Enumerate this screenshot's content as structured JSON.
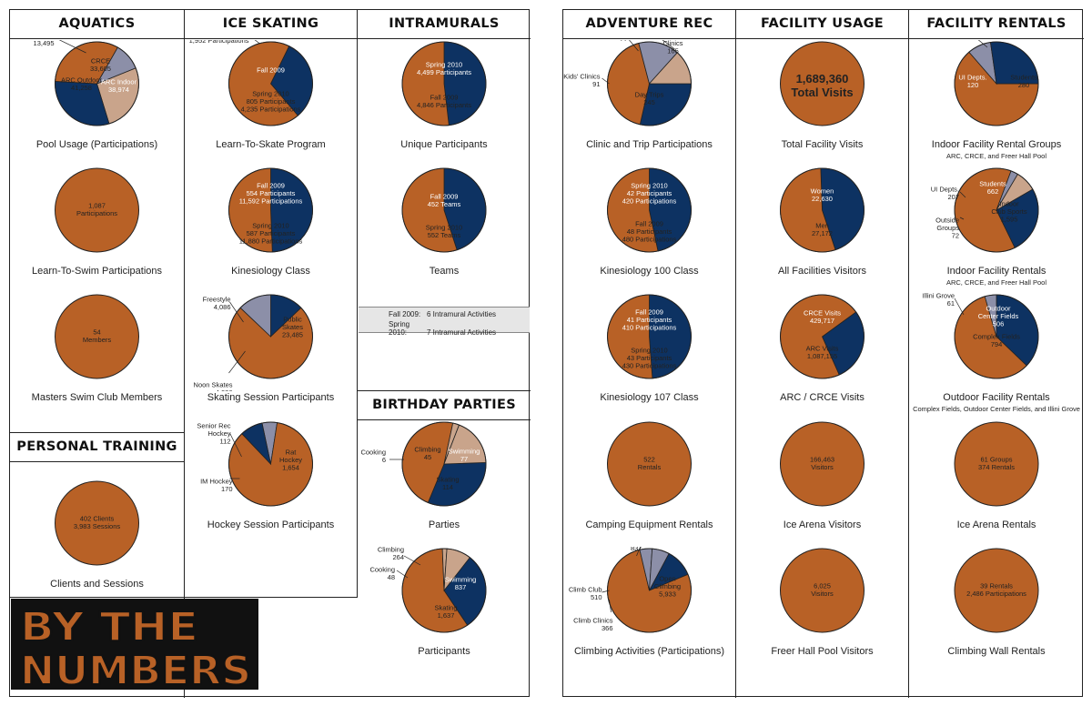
{
  "colors": {
    "navy": "#0d3262",
    "orange": "#b86126",
    "tan": "#c9a48b",
    "gray": "#8c8fa8",
    "border": "#222222",
    "logo_fill": "#b86126",
    "logo_outline": "#111111"
  },
  "logo": {
    "line1": "BY THE",
    "line2": "NUMBERS"
  },
  "sections": {
    "aquatics": "AQUATICS",
    "personal_training": "PERSONAL TRAINING",
    "ice_skating": "ICE SKATING",
    "intramurals": "INTRAMURALS",
    "birthday_parties": "BIRTHDAY PARTIES",
    "adventure_rec": "ADVENTURE REC",
    "facility_usage": "FACILITY USAGE",
    "facility_rentals": "FACILITY RENTALS"
  },
  "intramural_activities": {
    "fall_label": "Fall 2009:",
    "fall_value": "6 Intramural Activities",
    "spring_label": "Spring 2010:",
    "spring_value": "7 Intramural Activities"
  },
  "chart_data": [
    {
      "id": "pool",
      "type": "pie",
      "title": "Pool Usage (Participations)",
      "slices": [
        {
          "label": "CRCE",
          "value": 33605
        },
        {
          "label": "ARC Indoor",
          "value": 38974
        },
        {
          "label": "ARC Outdoor",
          "value": 41258
        },
        {
          "label": "Freer Hall Pool",
          "value": 13495
        }
      ],
      "labels": [
        [
          "CRCE",
          "33,605"
        ],
        [
          "ARC Indoor",
          "38,974"
        ],
        [
          "ARC Outdoor",
          "41,258"
        ],
        [
          "Freer Hall Pool",
          "13,495"
        ]
      ]
    },
    {
      "id": "learn_to_swim",
      "type": "pie",
      "title": "Learn-To-Swim Participations",
      "slices": [
        {
          "label": "Participations",
          "value": 1087
        }
      ],
      "labels": [
        [
          "1,087",
          "Participations"
        ]
      ]
    },
    {
      "id": "masters",
      "type": "pie",
      "title": "Masters Swim Club Members",
      "slices": [
        {
          "label": "Members",
          "value": 54
        }
      ],
      "labels": [
        [
          "54",
          "Members"
        ]
      ]
    },
    {
      "id": "personal_training",
      "type": "pie",
      "title": "Clients and Sessions",
      "slices": [
        {
          "label": "Clients",
          "value": 402
        }
      ],
      "labels": [
        [
          "402 Clients",
          "3,983 Sessions"
        ]
      ]
    },
    {
      "id": "learn_to_skate",
      "type": "pie",
      "title": "Learn-To-Skate Program",
      "slices": [
        {
          "label": "Fall 2009",
          "value": 1952
        },
        {
          "label": "Spring 2010",
          "value": 4235
        }
      ],
      "labels": [
        [
          "275 Participants",
          "1,952 Participations"
        ],
        [
          "Fall 2009"
        ],
        [
          "Spring 2010",
          "805 Participants",
          "4,235 Participations"
        ]
      ]
    },
    {
      "id": "kinesiology_class",
      "type": "pie",
      "title": "Kinesiology Class",
      "slices": [
        {
          "label": "Fall 2009",
          "value": 11592
        },
        {
          "label": "Spring 2010",
          "value": 11880
        }
      ],
      "labels": [
        [
          "Fall 2009",
          "554 Participants",
          "11,592 Participations"
        ],
        [
          "Spring 2010",
          "587 Participants",
          "11,880 Participations"
        ]
      ]
    },
    {
      "id": "skating_sessions",
      "type": "pie",
      "title": "Skating Session Participants",
      "slices": [
        {
          "label": "Freestyle",
          "value": 4086
        },
        {
          "label": "Public Skates",
          "value": 23485
        },
        {
          "label": "Noon Skates",
          "value": 4086
        }
      ],
      "labels": [
        [
          "Freestyle",
          "4,086"
        ],
        [
          "Public",
          "Skates",
          "23,485"
        ],
        [
          "Noon Skates",
          "4,086"
        ]
      ]
    },
    {
      "id": "hockey",
      "type": "pie",
      "title": "Hockey Session Participants",
      "slices": [
        {
          "label": "Senior Rec Hockey",
          "value": 112
        },
        {
          "label": "Rat Hockey",
          "value": 1654
        },
        {
          "label": "IM Hockey",
          "value": 170
        }
      ],
      "labels": [
        [
          "Senior Rec",
          "Hockey",
          "112"
        ],
        [
          "Rat",
          "Hockey",
          "1,654"
        ],
        [
          "IM Hockey",
          "170"
        ]
      ]
    },
    {
      "id": "unique_participants",
      "type": "pie",
      "title": "Unique Participants",
      "slices": [
        {
          "label": "Spring 2010",
          "value": 4499
        },
        {
          "label": "Fall 2009",
          "value": 4846
        }
      ],
      "labels": [
        [
          "Spring 2010",
          "4,499 Participants"
        ],
        [
          "Fall 2009",
          "4,846 Participants"
        ]
      ]
    },
    {
      "id": "teams",
      "type": "pie",
      "title": "Teams",
      "slices": [
        {
          "label": "Fall 2009",
          "value": 452
        },
        {
          "label": "Spring 2010",
          "value": 552
        }
      ],
      "labels": [
        [
          "Fall 2009",
          "452 Teams"
        ],
        [
          "Spring 2010",
          "552 Teams"
        ]
      ]
    },
    {
      "id": "parties",
      "type": "pie",
      "title": "Parties",
      "slices": [
        {
          "label": "Swimming",
          "value": 77
        },
        {
          "label": "Skating",
          "value": 114
        },
        {
          "label": "Cooking",
          "value": 6
        },
        {
          "label": "Climbing",
          "value": 45
        }
      ],
      "labels": [
        [
          "Swimming",
          "77"
        ],
        [
          "Skating",
          "114"
        ],
        [
          "Cooking",
          "6"
        ],
        [
          "Climbing",
          "45"
        ]
      ]
    },
    {
      "id": "party_participants",
      "type": "pie",
      "title": "Participants",
      "slices": [
        {
          "label": "Swimming",
          "value": 837
        },
        {
          "label": "Skating",
          "value": 1637
        },
        {
          "label": "Cooking",
          "value": 48
        },
        {
          "label": "Climbing",
          "value": 264
        }
      ],
      "labels": [
        [
          "Swimming",
          "837"
        ],
        [
          "Skating",
          "1,637"
        ],
        [
          "Cooking",
          "48"
        ],
        [
          "Climbing",
          "264"
        ]
      ]
    },
    {
      "id": "clinics_trips",
      "type": "pie",
      "title": "Clinic and Trip Participations",
      "slices": [
        {
          "label": "Community Clinics",
          "value": 165
        },
        {
          "label": "Day Trips",
          "value": 245
        },
        {
          "label": "Kids' Clinics",
          "value": 91
        },
        {
          "label": "Clinics",
          "value": 77
        }
      ],
      "labels": [
        [
          "Community",
          "Clinics",
          "165"
        ],
        [
          "Day Trips",
          "245"
        ],
        [
          "Kids' Clinics",
          "91"
        ],
        [
          "Clinics",
          "77"
        ]
      ]
    },
    {
      "id": "kin100",
      "type": "pie",
      "title": "Kinesiology 100 Class",
      "slices": [
        {
          "label": "Spring 2010",
          "value": 420
        },
        {
          "label": "Fall 2009",
          "value": 480
        }
      ],
      "labels": [
        [
          "Spring 2010",
          "42 Participants",
          "420 Participations"
        ],
        [
          "Fall 2009",
          "48 Participants",
          "480 Participations"
        ]
      ]
    },
    {
      "id": "kin107",
      "type": "pie",
      "title": "Kinesiology 107 Class",
      "slices": [
        {
          "label": "Fall 2009",
          "value": 410
        },
        {
          "label": "Spring 2010",
          "value": 430
        }
      ],
      "labels": [
        [
          "Fall 2009",
          "41 Participants",
          "410 Participations"
        ],
        [
          "Spring 2010",
          "43 Participants",
          "430 Participations"
        ]
      ]
    },
    {
      "id": "camping",
      "type": "pie",
      "title": "Camping Equipment Rentals",
      "slices": [
        {
          "label": "Rentals",
          "value": 522
        }
      ],
      "labels": [
        [
          "522",
          "Rentals"
        ]
      ]
    },
    {
      "id": "climbing_activities",
      "type": "pie",
      "title": "Climbing Activities (Participations)",
      "slices": [
        {
          "label": "Free Events (11)",
          "value": 837
        },
        {
          "label": "Open Climbing",
          "value": 5933
        },
        {
          "label": "Climb Clinics",
          "value": 366
        },
        {
          "label": "Climb Club",
          "value": 510
        }
      ],
      "labels": [
        [
          "Free Events (11)",
          "837"
        ],
        [
          "Open",
          "Climbing",
          "5,933"
        ],
        [
          "Climb Clinics",
          "366"
        ],
        [
          "Climb Club",
          "510"
        ]
      ]
    },
    {
      "id": "total_visits",
      "type": "pie",
      "title": "Total Facility Visits",
      "slices": [
        {
          "label": "Total Visits",
          "value": 1689360
        }
      ],
      "labels": [
        [
          "1,689,360",
          "Total Visits"
        ]
      ]
    },
    {
      "id": "all_visitors",
      "type": "pie",
      "title": "All Facilities Visitors",
      "slices": [
        {
          "label": "Women",
          "value": 22630
        },
        {
          "label": "Men",
          "value": 27172
        }
      ],
      "labels": [
        [
          "Women",
          "22,630"
        ],
        [
          "Men",
          "27,172"
        ]
      ]
    },
    {
      "id": "arc_crce",
      "type": "pie",
      "title": "ARC / CRCE Visits",
      "slices": [
        {
          "label": "CRCE Visits",
          "value": 429717
        },
        {
          "label": "ARC Visits",
          "value": 1087155
        }
      ],
      "labels": [
        [
          "CRCE Visits",
          "429,717"
        ],
        [
          "ARC Visits",
          "1,087,155"
        ]
      ]
    },
    {
      "id": "ice_arena_visitors",
      "type": "pie",
      "title": "Ice Arena Visitors",
      "slices": [
        {
          "label": "Visitors",
          "value": 166463
        }
      ],
      "labels": [
        [
          "166,463",
          "Visitors"
        ]
      ]
    },
    {
      "id": "freer_hall",
      "type": "pie",
      "title": "Freer Hall Pool Visitors",
      "slices": [
        {
          "label": "Visitors",
          "value": 6025
        }
      ],
      "labels": [
        [
          "6,025",
          "Visitors"
        ]
      ]
    },
    {
      "id": "indoor_rental_groups",
      "type": "pie",
      "title": "Indoor Facility Rental Groups",
      "subtitle": "ARC, CRCE, and Freer Hall Pool",
      "slices": [
        {
          "label": "Students",
          "value": 280
        },
        {
          "label": "Outside Groups",
          "value": 40
        },
        {
          "label": "UI Depts.",
          "value": 120
        }
      ],
      "labels": [
        [
          "Students",
          "280"
        ],
        [
          "Outside Groups",
          "40"
        ],
        [
          "UI Depts.",
          "120"
        ]
      ]
    },
    {
      "id": "indoor_rentals",
      "type": "pie",
      "title": "Indoor Facility Rentals",
      "subtitle": "ARC, CRCE, and Freer Hall Pool",
      "slices": [
        {
          "label": "Students",
          "value": 662
        },
        {
          "label": "Indoor Club Sports",
          "value": 1595
        },
        {
          "label": "Outside Groups",
          "value": 72
        },
        {
          "label": "UI Depts.",
          "value": 207
        }
      ],
      "labels": [
        [
          "Students",
          "662"
        ],
        [
          "Indoor",
          "Club Sports",
          "1,595"
        ],
        [
          "Outside",
          "Groups",
          "72"
        ],
        [
          "UI Depts.",
          "207"
        ]
      ]
    },
    {
      "id": "outdoor_rentals",
      "type": "pie",
      "title": "Outdoor Facility Rentals",
      "subtitle": "Complex Fields, Outdoor Center Fields, and Illini Grove",
      "slices": [
        {
          "label": "Outdoor Center Fields",
          "value": 506
        },
        {
          "label": "Complex Fields",
          "value": 794
        },
        {
          "label": "Illini Grove",
          "value": 61
        }
      ],
      "labels": [
        [
          "Outdoor",
          "Center Fields",
          "506"
        ],
        [
          "Complex Fields",
          "794"
        ],
        [
          "Illini Grove",
          "61"
        ]
      ]
    },
    {
      "id": "ice_arena_rentals",
      "type": "pie",
      "title": "Ice Arena Rentals",
      "slices": [
        {
          "label": "Groups",
          "value": 61
        }
      ],
      "labels": [
        [
          "61 Groups",
          "374 Rentals"
        ]
      ]
    },
    {
      "id": "climbing_wall_rentals",
      "type": "pie",
      "title": "Climbing Wall Rentals",
      "slices": [
        {
          "label": "Rentals",
          "value": 39
        }
      ],
      "labels": [
        [
          "39 Rentals",
          "2,486 Participations"
        ]
      ]
    }
  ]
}
